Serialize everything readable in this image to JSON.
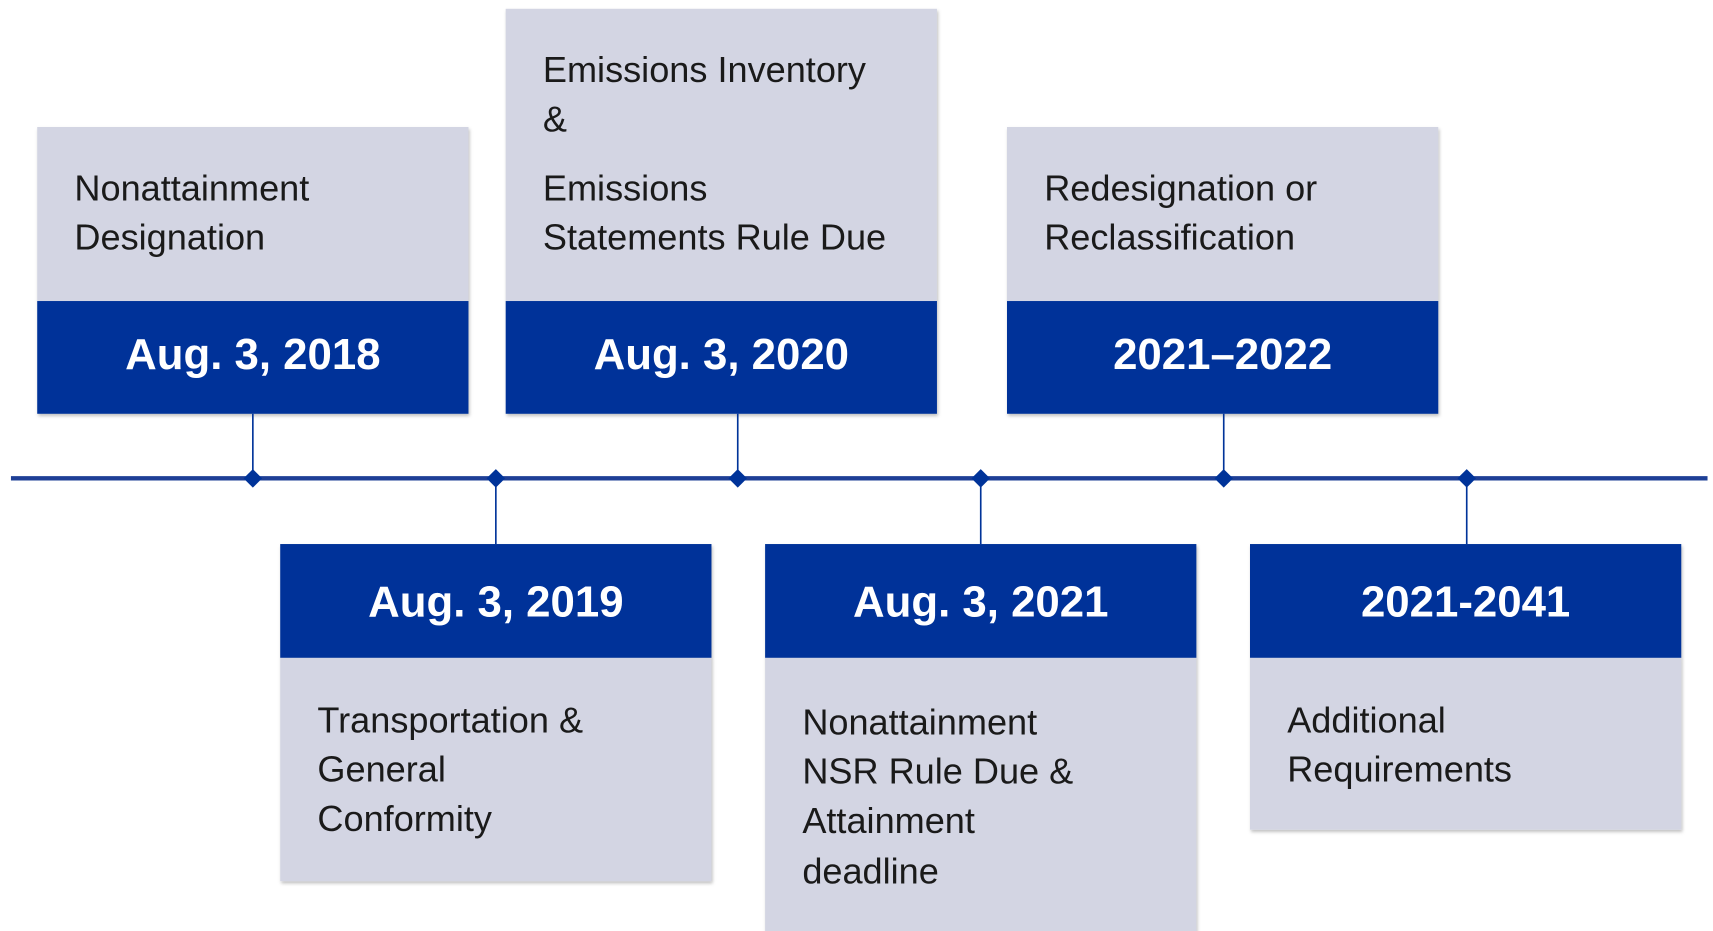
{
  "events": [
    {
      "date": "Aug. 3, 2018",
      "paragraphs": [
        [
          "Nonattainment",
          "Designation"
        ]
      ]
    },
    {
      "date": "Aug. 3, 2019",
      "paragraphs": [
        [
          "Transportation &",
          "General",
          "Conformity"
        ]
      ]
    },
    {
      "date": "Aug. 3, 2020",
      "paragraphs": [
        [
          "Emissions Inventory",
          "&"
        ],
        [
          "Emissions",
          "Statements Rule Due"
        ]
      ]
    },
    {
      "date": "Aug. 3, 2021",
      "paragraphs": [
        [
          "Nonattainment",
          "NSR Rule Due &",
          "Attainment",
          "deadline"
        ]
      ]
    },
    {
      "date": "2021–2022",
      "paragraphs": [
        [
          "Redesignation or",
          "Reclassification"
        ]
      ]
    },
    {
      "date": "2021-2041",
      "paragraphs": [
        [
          "Additional",
          "Requirements"
        ]
      ]
    }
  ]
}
